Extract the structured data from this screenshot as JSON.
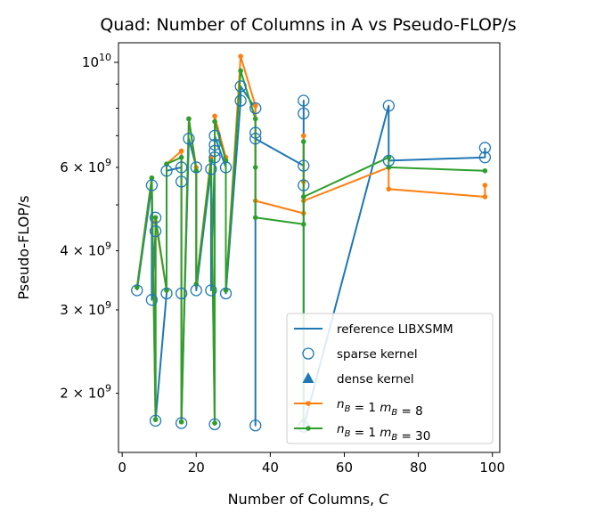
{
  "chart_data": {
    "type": "line",
    "title": "Quad: Number of Columns in A vs Pseudo-FLOP/s",
    "xlabel": "Number of Columns, C",
    "ylabel": "Pseudo-FLOP/s",
    "xlim": [
      -1,
      102
    ],
    "ylim": [
      1500000000.0,
      11000000000.0
    ],
    "yscale": "log",
    "x_ticks": [
      {
        "value": 0,
        "label": "0"
      },
      {
        "value": 20,
        "label": "20"
      },
      {
        "value": 40,
        "label": "40"
      },
      {
        "value": 60,
        "label": "60"
      },
      {
        "value": 80,
        "label": "80"
      },
      {
        "value": 100,
        "label": "100"
      }
    ],
    "y_major_ticks": [
      {
        "value": 10000000000,
        "base": "10",
        "exp": "10"
      }
    ],
    "y_minor_labeled_ticks": [
      {
        "value": 2000000000,
        "mant": "2",
        "base": "10",
        "exp": "9"
      },
      {
        "value": 3000000000,
        "mant": "3",
        "base": "10",
        "exp": "9"
      },
      {
        "value": 4000000000,
        "mant": "4",
        "base": "10",
        "exp": "9"
      },
      {
        "value": 6000000000,
        "mant": "6",
        "base": "10",
        "exp": "9"
      }
    ],
    "y_minor_ticks": [
      5000000000,
      7000000000,
      8000000000,
      9000000000
    ],
    "grid": false,
    "legend_position": "lower-right",
    "legend": [
      {
        "marker": "line",
        "label": "reference LIBXSMM",
        "color": "#1f77b4"
      },
      {
        "marker": "open-circle",
        "label": "sparse kernel",
        "color": "#1f77b4"
      },
      {
        "marker": "triangle",
        "label": "dense kernel",
        "color": "#1f77b4"
      },
      {
        "marker": "line-dot",
        "label_parts": [
          {
            "t": "n",
            "i": true
          },
          {
            "t": "B",
            "sub": true,
            "i": true
          },
          {
            "t": " = 1 "
          },
          {
            "t": "m",
            "i": true
          },
          {
            "t": "B",
            "sub": true,
            "i": true
          },
          {
            "t": " = 8"
          }
        ],
        "color": "#ff7f0e"
      },
      {
        "marker": "line-dot",
        "label_parts": [
          {
            "t": "n",
            "i": true
          },
          {
            "t": "B",
            "sub": true,
            "i": true
          },
          {
            "t": " = 1 "
          },
          {
            "t": "m",
            "i": true
          },
          {
            "t": "B",
            "sub": true,
            "i": true
          },
          {
            "t": " = 30"
          }
        ],
        "color": "#2ca02c"
      }
    ],
    "series": [
      {
        "name": "reference LIBXSMM",
        "color": "#1f77b4",
        "points": [
          [
            4,
            3300000000.0
          ],
          [
            8,
            5500000000.0
          ],
          [
            8,
            3150000000.0
          ],
          [
            9,
            4400000000.0
          ],
          [
            9,
            4700000000.0
          ],
          [
            9,
            1750000000.0
          ],
          [
            12,
            3250000000.0
          ],
          [
            12,
            5900000000.0
          ],
          [
            16,
            6000000000.0
          ],
          [
            16,
            5600000000.0
          ],
          [
            16,
            3250000000.0
          ],
          [
            16,
            1730000000.0
          ],
          [
            18,
            6900000000.0
          ],
          [
            20,
            6000000000.0
          ],
          [
            20,
            3300000000.0
          ],
          [
            24,
            5950000000.0
          ],
          [
            24,
            3300000000.0
          ],
          [
            25,
            6300000000.0
          ],
          [
            25,
            1720000000.0
          ],
          [
            25,
            6500000000.0
          ],
          [
            25,
            6700000000.0
          ],
          [
            25,
            7000000000.0
          ],
          [
            28,
            6000000000.0
          ],
          [
            28,
            3250000000.0
          ],
          [
            32,
            8300000000.0
          ],
          [
            32,
            8900000000.0
          ],
          [
            36,
            8000000000.0
          ],
          [
            36,
            7100000000.0
          ],
          [
            36,
            1710000000.0
          ],
          [
            36,
            6900000000.0
          ],
          [
            49,
            6050000000.0
          ],
          [
            49,
            8300000000.0
          ],
          [
            49,
            7800000000.0
          ],
          [
            49,
            5500000000.0
          ],
          [
            49,
            1700000000.0
          ],
          [
            72,
            8100000000.0
          ],
          [
            72,
            6200000000.0
          ],
          [
            98,
            6300000000.0
          ],
          [
            98,
            6600000000.0
          ]
        ]
      },
      {
        "name": "n_B = 1 m_B = 8",
        "color": "#ff7f0e",
        "points": [
          [
            4,
            3350000000.0
          ],
          [
            8,
            5700000000.0
          ],
          [
            9,
            1760000000.0
          ],
          [
            9,
            4600000000.0
          ],
          [
            12,
            3300000000.0
          ],
          [
            12,
            6100000000.0
          ],
          [
            16,
            6500000000.0
          ],
          [
            16,
            1740000000.0
          ],
          [
            18,
            7600000000.0
          ],
          [
            20,
            6000000000.0
          ],
          [
            20,
            3400000000.0
          ],
          [
            24,
            6300000000.0
          ],
          [
            25,
            1730000000.0
          ],
          [
            25,
            7700000000.0
          ],
          [
            28,
            6300000000.0
          ],
          [
            28,
            3300000000.0
          ],
          [
            32,
            10300000000.0
          ],
          [
            36,
            8100000000.0
          ],
          [
            36,
            5100000000.0
          ],
          [
            49,
            4800000000.0
          ],
          [
            49,
            7000000000.0
          ],
          [
            49,
            5600000000.0
          ],
          [
            49,
            5100000000.0
          ],
          [
            72,
            6000000000.0
          ],
          [
            72,
            5400000000.0
          ],
          [
            98,
            5200000000.0
          ],
          [
            98,
            5500000000.0
          ]
        ]
      },
      {
        "name": "n_B = 1 m_B = 30",
        "color": "#2ca02c",
        "points": [
          [
            4,
            3350000000.0
          ],
          [
            8,
            5700000000.0
          ],
          [
            9,
            1760000000.0
          ],
          [
            9,
            4700000000.0
          ],
          [
            12,
            3300000000.0
          ],
          [
            12,
            6100000000.0
          ],
          [
            16,
            6300000000.0
          ],
          [
            16,
            1740000000.0
          ],
          [
            18,
            7600000000.0
          ],
          [
            20,
            5900000000.0
          ],
          [
            20,
            3400000000.0
          ],
          [
            24,
            6200000000.0
          ],
          [
            25,
            1730000000.0
          ],
          [
            25,
            7500000000.0
          ],
          [
            28,
            6200000000.0
          ],
          [
            28,
            3300000000.0
          ],
          [
            32,
            9600000000.0
          ],
          [
            36,
            7600000000.0
          ],
          [
            36,
            6000000000.0
          ],
          [
            36,
            4700000000.0
          ],
          [
            49,
            4550000000.0
          ],
          [
            49,
            6800000000.0
          ],
          [
            49,
            1750000000.0
          ],
          [
            49,
            5200000000.0
          ],
          [
            72,
            6300000000.0
          ],
          [
            72,
            6000000000.0
          ],
          [
            98,
            5900000000.0
          ]
        ]
      }
    ],
    "sparse_markers": [
      [
        4,
        3300000000.0
      ],
      [
        8,
        5500000000.0
      ],
      [
        8,
        3150000000.0
      ],
      [
        9,
        4400000000.0
      ],
      [
        9,
        4700000000.0
      ],
      [
        9,
        1750000000.0
      ],
      [
        12,
        3250000000.0
      ],
      [
        12,
        5900000000.0
      ],
      [
        16,
        6000000000.0
      ],
      [
        16,
        5600000000.0
      ],
      [
        16,
        3250000000.0
      ],
      [
        16,
        1730000000.0
      ],
      [
        18,
        6900000000.0
      ],
      [
        20,
        6000000000.0
      ],
      [
        20,
        3300000000.0
      ],
      [
        24,
        5950000000.0
      ],
      [
        24,
        3300000000.0
      ],
      [
        25,
        6300000000.0
      ],
      [
        25,
        1720000000.0
      ],
      [
        25,
        6500000000.0
      ],
      [
        25,
        6700000000.0
      ],
      [
        25,
        7000000000.0
      ],
      [
        28,
        6000000000.0
      ],
      [
        28,
        3250000000.0
      ],
      [
        32,
        8300000000.0
      ],
      [
        32,
        8900000000.0
      ],
      [
        36,
        8000000000.0
      ],
      [
        36,
        7100000000.0
      ],
      [
        36,
        1710000000.0
      ],
      [
        36,
        6900000000.0
      ],
      [
        49,
        6050000000.0
      ],
      [
        49,
        8300000000.0
      ],
      [
        49,
        7800000000.0
      ],
      [
        49,
        5500000000.0
      ],
      [
        49,
        1700000000.0
      ],
      [
        72,
        8100000000.0
      ],
      [
        72,
        6200000000.0
      ],
      [
        98,
        6300000000.0
      ],
      [
        98,
        6600000000.0
      ]
    ]
  }
}
